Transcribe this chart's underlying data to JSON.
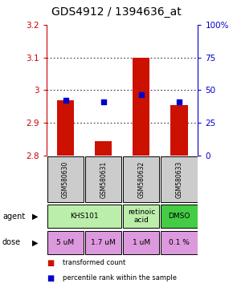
{
  "title": "GDS4912 / 1394636_at",
  "samples": [
    "GSM580630",
    "GSM580631",
    "GSM580632",
    "GSM580633"
  ],
  "bar_values": [
    2.97,
    2.845,
    3.1,
    2.955
  ],
  "percentile_values": [
    2.97,
    2.965,
    2.985,
    2.965
  ],
  "ylim": [
    2.8,
    3.2
  ],
  "yticks": [
    2.8,
    2.9,
    3.0,
    3.1,
    3.2
  ],
  "right_yticks": [
    0,
    25,
    50,
    75,
    100
  ],
  "bar_color": "#cc1100",
  "dot_color": "#0000cc",
  "bar_width": 0.45,
  "agent_info": [
    {
      "c0": 0,
      "c1": 1,
      "text": "KHS101",
      "color": "#bbeeaa"
    },
    {
      "c0": 2,
      "c1": 2,
      "text": "retinoic\nacid",
      "color": "#bbeeaa"
    },
    {
      "c0": 3,
      "c1": 3,
      "text": "DMSO",
      "color": "#44cc44"
    }
  ],
  "dose_labels": [
    "5 uM",
    "1.7 uM",
    "1 uM",
    "0.1 %"
  ],
  "dose_color": "#dd99dd",
  "left_tick_color": "#cc0000",
  "right_tick_color": "#0000cc",
  "sample_box_color": "#cccccc",
  "title_fontsize": 10,
  "tick_fontsize": 7.5,
  "sample_fontsize": 5.5,
  "cell_fontsize": 6.5,
  "legend_fontsize": 6
}
